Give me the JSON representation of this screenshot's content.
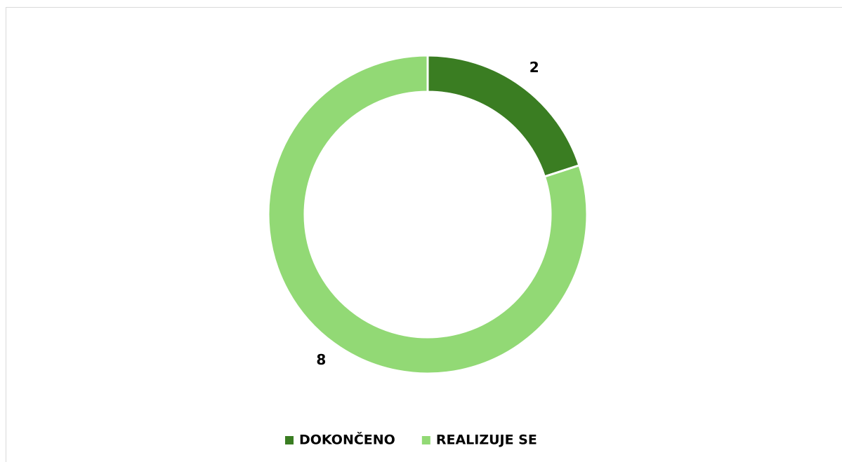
{
  "chart_data": {
    "type": "donut",
    "categories": [
      "DOKONČENO",
      "REALIZUJE SE"
    ],
    "series": [
      {
        "values": [
          2,
          8
        ],
        "colors": [
          "#3a7d22",
          "#92d975"
        ]
      }
    ],
    "legend": "bottom"
  }
}
